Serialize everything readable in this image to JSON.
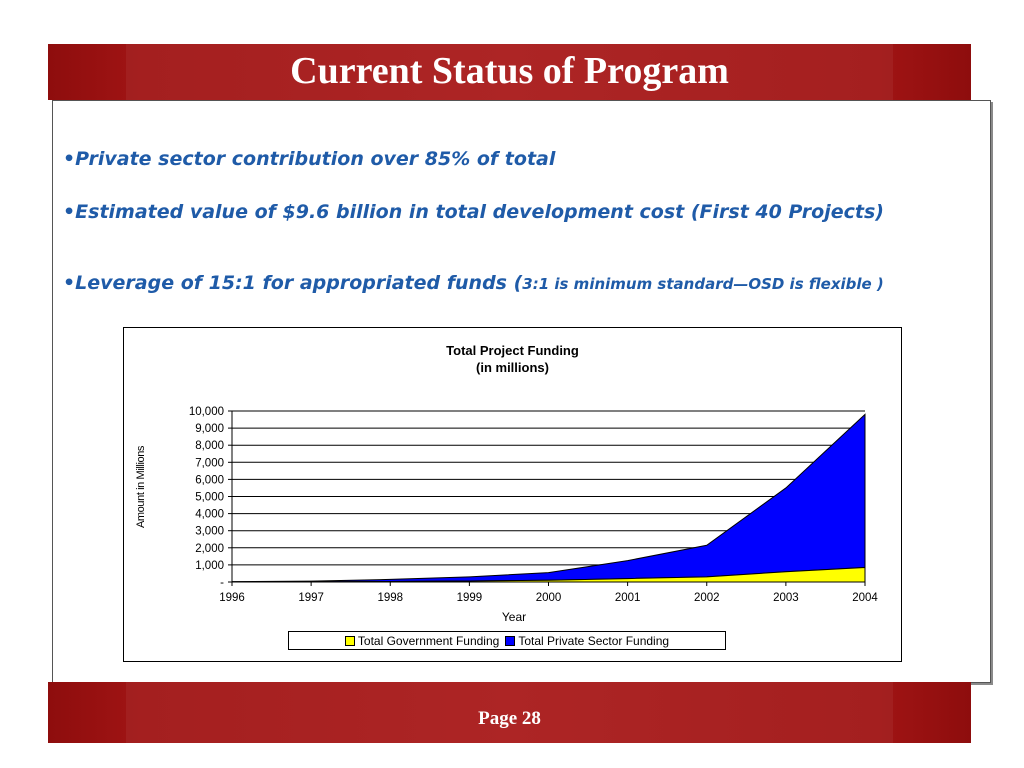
{
  "slide": {
    "title": "Current Status of Program",
    "page": "Page 28",
    "bullets": [
      {
        "text": "Private sector contribution over 85% of total",
        "note": ""
      },
      {
        "text": "Estimated value of $9.6 billion in total development cost (First 40 Projects)",
        "note": ""
      },
      {
        "text": "Leverage of 15:1 for appropriated funds (",
        "note": "3:1 is minimum standard—OSD is flexible )"
      }
    ],
    "bullet_symbol": "•"
  },
  "chart_data": {
    "type": "area",
    "stacked": true,
    "title": "Total Project Funding",
    "subtitle": "(in millions)",
    "xlabel": "Year",
    "ylabel": "Amount in Millions",
    "x": [
      "1996",
      "1997",
      "1998",
      "1999",
      "2000",
      "2001",
      "2002",
      "2003",
      "2004"
    ],
    "ylim": [
      0,
      10000
    ],
    "yticks": [
      "-",
      "1,000",
      "2,000",
      "3,000",
      "4,000",
      "5,000",
      "6,000",
      "7,000",
      "8,000",
      "9,000",
      "10,000"
    ],
    "grid": true,
    "legend_position": "bottom",
    "series": [
      {
        "name": "Total Government Funding",
        "color": "#ffff00",
        "values": [
          5,
          10,
          30,
          60,
          100,
          200,
          300,
          600,
          850
        ]
      },
      {
        "name": "Total Private Sector Funding",
        "color": "#0000ff",
        "values": [
          20,
          40,
          120,
          240,
          450,
          1050,
          1850,
          4900,
          8950
        ]
      }
    ]
  }
}
